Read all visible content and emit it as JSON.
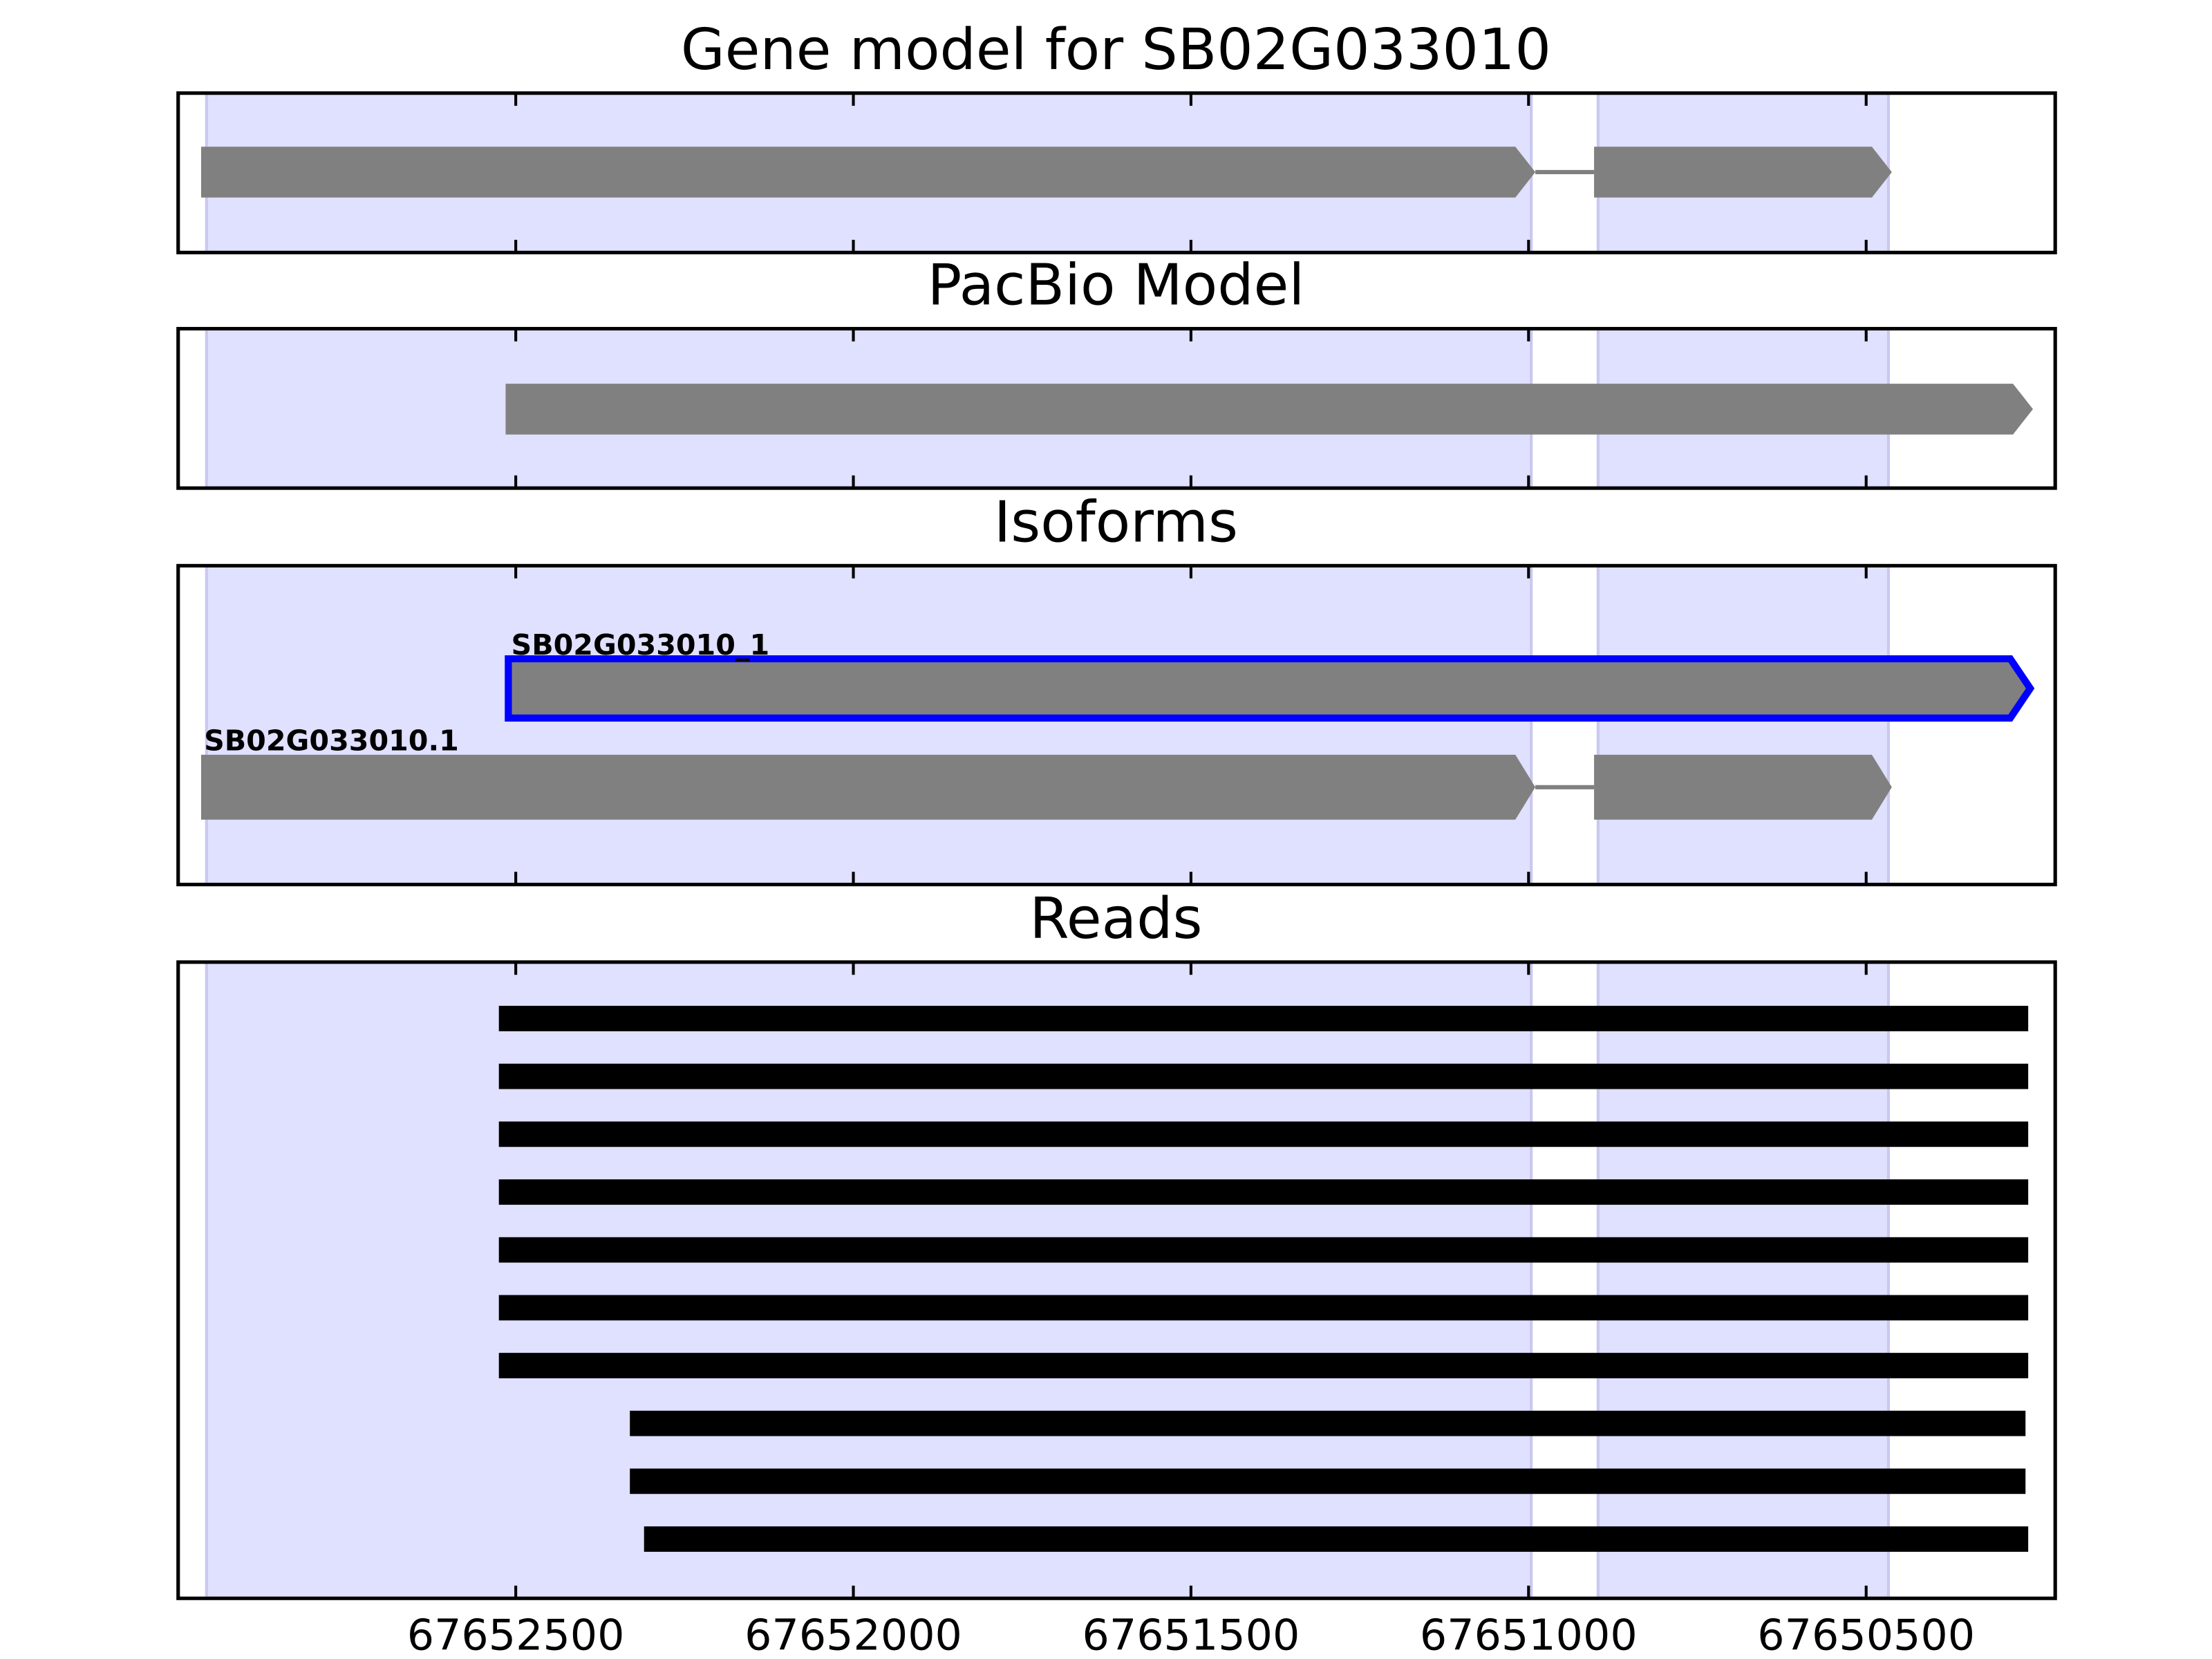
{
  "chart_data": [
    {
      "type": "gene",
      "title": "Gene model for SB02G033010",
      "xlim": [
        67653000,
        67650220
      ],
      "xticks": [
        67652500,
        67652000,
        67651500,
        67651000,
        67650500
      ],
      "shaded": [
        [
          67652958,
          67650996
        ],
        [
          67650897,
          67650467
        ]
      ],
      "shade_color": "#e0e0ff",
      "color": "#808080",
      "transcripts": [
        {
          "exons": [
            [
              67652966,
              67650990
            ],
            [
              67650903,
              67650462
            ]
          ]
        }
      ]
    },
    {
      "type": "gene",
      "title": "PacBio Model",
      "xlim": [
        67653000,
        67650220
      ],
      "xticks": [
        67652500,
        67652000,
        67651500,
        67651000,
        67650500
      ],
      "shaded": [
        [
          67652958,
          67650996
        ],
        [
          67650897,
          67650467
        ]
      ],
      "shade_color": "#e0e0ff",
      "color": "#808080",
      "transcripts": [
        {
          "exons": [
            [
              67652515,
              67650253
            ]
          ]
        }
      ]
    },
    {
      "type": "gene",
      "title": "Isoforms",
      "xlim": [
        67653000,
        67650220
      ],
      "xticks": [
        67652500,
        67652000,
        67651500,
        67651000,
        67650500
      ],
      "shaded": [
        [
          67652958,
          67650996
        ],
        [
          67650897,
          67650467
        ]
      ],
      "shade_color": "#e0e0ff",
      "color": "#808080",
      "transcripts": [
        {
          "name": "SB02G033010_1",
          "edgecolor": "#0000ff",
          "exons": [
            [
              67652511,
              67650257
            ]
          ]
        },
        {
          "name": "SB02G033010.1",
          "exons": [
            [
              67652966,
              67650990
            ],
            [
              67650903,
              67650462
            ]
          ]
        }
      ]
    },
    {
      "type": "reads",
      "title": "Reads",
      "xlim": [
        67653000,
        67650220
      ],
      "xticks": [
        67652500,
        67652000,
        67651500,
        67651000,
        67650500
      ],
      "shaded": [
        [
          67652958,
          67650996
        ],
        [
          67650897,
          67650467
        ]
      ],
      "shade_color": "#e0e0ff",
      "color": "#000000",
      "reads": [
        [
          67652525,
          67650260
        ],
        [
          67652525,
          67650260
        ],
        [
          67652525,
          67650260
        ],
        [
          67652525,
          67650260
        ],
        [
          67652525,
          67650260
        ],
        [
          67652525,
          67650260
        ],
        [
          67652525,
          67650260
        ],
        [
          67652331,
          67650264
        ],
        [
          67652331,
          67650264
        ],
        [
          67652310,
          67650260
        ]
      ]
    }
  ]
}
